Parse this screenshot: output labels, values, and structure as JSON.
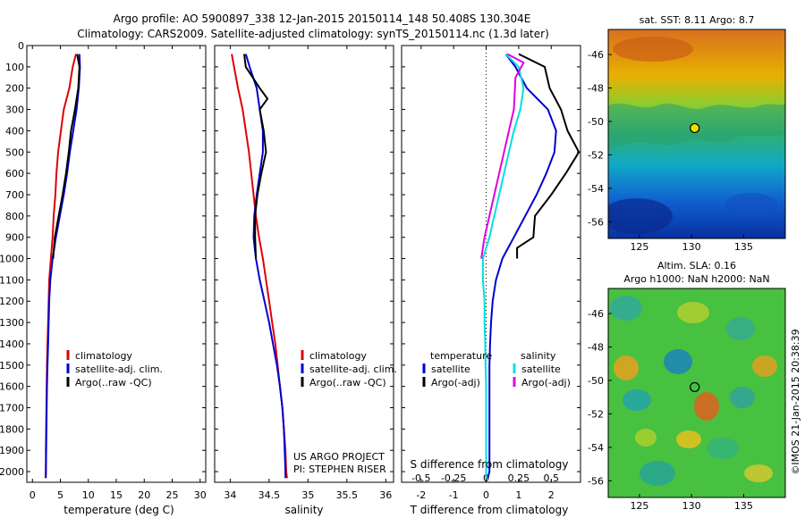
{
  "header": {
    "line1": "Argo profile: AO 5900897_338 12-Jan-2015 20150114_148 50.408S 130.304E",
    "line2": "Climatology: CARS2009. Satellite-adjusted climatology: synTS_20150114.nc (1.3d later)"
  },
  "colors": {
    "climatology": "#e00000",
    "satellite": "#0000d0",
    "argo": "#000000",
    "s_satellite": "#00e0e0",
    "s_argo": "#e000e0"
  },
  "chart_data": [
    {
      "type": "line",
      "xlabel": "temperature (deg C)",
      "xlim": [
        -1,
        31
      ],
      "xticks": [
        0,
        5,
        10,
        15,
        20,
        25,
        30
      ],
      "ylim": [
        0,
        2050
      ],
      "yticks": [
        0,
        100,
        200,
        300,
        400,
        500,
        600,
        700,
        800,
        900,
        1000,
        1100,
        1200,
        1300,
        1400,
        1500,
        1600,
        1700,
        1800,
        1900,
        2000
      ],
      "y_reversed": true,
      "legend": [
        "climatology",
        "satellite-adj. clim.",
        "Argo(..raw -QC)"
      ],
      "series": [
        {
          "name": "climatology",
          "color": "#e00000",
          "x": [
            7.8,
            7.2,
            6.6,
            5.6,
            5.1,
            4.6,
            4.3,
            4.1,
            3.8,
            3.6,
            3.3,
            3.0,
            2.9,
            2.8,
            2.7,
            2.6,
            2.55,
            2.5,
            2.45,
            2.4,
            2.4,
            2.4
          ],
          "y": [
            40,
            100,
            200,
            300,
            400,
            500,
            600,
            700,
            800,
            900,
            1000,
            1100,
            1200,
            1300,
            1400,
            1500,
            1600,
            1700,
            1800,
            1900,
            2000,
            2030
          ]
        },
        {
          "name": "satellite-adj. clim.",
          "color": "#0000d0",
          "x": [
            8.4,
            8.5,
            8.3,
            7.9,
            7.3,
            6.7,
            6.2,
            5.6,
            4.9,
            4.2,
            3.6,
            3.2,
            3.0,
            2.9,
            2.8,
            2.7,
            2.6,
            2.55,
            2.5,
            2.45,
            2.4,
            2.35
          ],
          "y": [
            40,
            100,
            200,
            300,
            400,
            500,
            600,
            700,
            800,
            900,
            1000,
            1100,
            1200,
            1300,
            1400,
            1500,
            1600,
            1700,
            1800,
            1900,
            2000,
            2030
          ]
        },
        {
          "name": "Argo(..raw -QC)",
          "color": "#000000",
          "x": [
            8.0,
            8.4,
            8.2,
            7.6,
            6.9,
            6.5,
            6.0,
            5.4,
            4.7,
            4.0,
            3.7
          ],
          "y": [
            40,
            100,
            200,
            300,
            400,
            500,
            600,
            700,
            800,
            900,
            1000
          ]
        }
      ]
    },
    {
      "type": "line",
      "xlabel": "salinity",
      "xlim": [
        33.8,
        36.1
      ],
      "xticks": [
        34,
        34.5,
        35,
        35.5,
        36
      ],
      "xticklabels": [
        "34",
        "34.5",
        "35",
        "35.5",
        "36"
      ],
      "ylim": [
        0,
        2050
      ],
      "y_reversed": true,
      "legend": [
        "climatology",
        "satellite-adj. clim.",
        "Argo(..raw -QC)"
      ],
      "annotation": [
        "US ARGO PROJECT",
        "PI: STEPHEN RISER"
      ],
      "series": [
        {
          "name": "climatology",
          "color": "#e00000",
          "x": [
            34.02,
            34.05,
            34.1,
            34.16,
            34.2,
            34.24,
            34.27,
            34.3,
            34.33,
            34.37,
            34.42,
            34.46,
            34.5,
            34.54,
            34.58,
            34.61,
            34.64,
            34.67,
            34.69,
            34.71,
            34.72,
            34.73
          ],
          "y": [
            40,
            100,
            200,
            300,
            400,
            500,
            600,
            700,
            800,
            900,
            1000,
            1100,
            1200,
            1300,
            1400,
            1500,
            1600,
            1700,
            1800,
            1900,
            2000,
            2030
          ]
        },
        {
          "name": "satellite-adj. clim.",
          "color": "#0000d0",
          "x": [
            34.2,
            34.25,
            34.34,
            34.38,
            34.42,
            34.42,
            34.38,
            34.34,
            34.31,
            34.3,
            34.33,
            34.38,
            34.44,
            34.5,
            34.55,
            34.6,
            34.64,
            34.67,
            34.69,
            34.7,
            34.71,
            34.71
          ],
          "y": [
            40,
            100,
            200,
            300,
            400,
            500,
            600,
            700,
            800,
            900,
            1000,
            1100,
            1200,
            1300,
            1400,
            1500,
            1600,
            1700,
            1800,
            1900,
            2000,
            2030
          ]
        },
        {
          "name": "Argo(..raw -QC)",
          "color": "#000000",
          "x": [
            34.18,
            34.2,
            34.38,
            34.48,
            34.38,
            34.43,
            34.46,
            34.4,
            34.35,
            34.32,
            34.32,
            34.33
          ],
          "y": [
            40,
            100,
            200,
            250,
            300,
            400,
            500,
            600,
            700,
            800,
            900,
            1000
          ]
        }
      ]
    },
    {
      "type": "line",
      "xlabel": "T difference from climatology",
      "xlabel2": "S difference from climatology",
      "xlim": [
        -2.6,
        2.9
      ],
      "xticks": [
        -2,
        -1,
        0,
        1,
        2
      ],
      "xticks2": [
        -0.5,
        -0.25,
        0,
        0.25,
        0.5
      ],
      "xticklabels2": [
        "-0.5",
        "-0.25",
        "0",
        "0.25",
        "0.5"
      ],
      "ylim": [
        0,
        2050
      ],
      "y_reversed": true,
      "legend_left": {
        "title": "temperature",
        "items": [
          "satellite",
          "Argo(-adj)"
        ]
      },
      "legend_right": {
        "title": "salinity",
        "items": [
          "satellite",
          "Argo(-adj)"
        ]
      },
      "series": [
        {
          "name": "T satellite",
          "color": "#0000d0",
          "x": [
            0.6,
            0.9,
            1.25,
            1.9,
            2.15,
            2.1,
            1.85,
            1.55,
            1.2,
            0.85,
            0.5,
            0.3,
            0.2,
            0.15,
            0.12,
            0.1,
            0.1,
            0.1,
            0.1,
            0.1,
            0.1,
            0.05
          ],
          "y": [
            40,
            100,
            200,
            300,
            400,
            500,
            600,
            700,
            800,
            900,
            1000,
            1100,
            1200,
            1300,
            1400,
            1500,
            1600,
            1700,
            1800,
            1900,
            2000,
            2030
          ]
        },
        {
          "name": "T Argo(-adj)",
          "color": "#000000",
          "x": [
            1.0,
            1.8,
            1.95,
            2.3,
            2.5,
            2.85,
            2.45,
            2.0,
            1.5,
            1.45,
            0.95,
            0.95
          ],
          "y": [
            40,
            100,
            200,
            300,
            400,
            500,
            600,
            700,
            800,
            900,
            950,
            1000
          ]
        },
        {
          "name": "S satellite",
          "color": "#00e0e0",
          "x": [
            0.6,
            1.0,
            1.15,
            1.05,
            0.85,
            0.7,
            0.55,
            0.4,
            0.25,
            0.1,
            -0.1,
            -0.1,
            -0.05,
            -0.05,
            -0.03,
            -0.02,
            0,
            0,
            0,
            0,
            0,
            0
          ],
          "y": [
            40,
            100,
            200,
            300,
            400,
            500,
            600,
            700,
            800,
            900,
            1000,
            1100,
            1200,
            1300,
            1400,
            1500,
            1600,
            1700,
            1800,
            1900,
            2000,
            2030
          ]
        },
        {
          "name": "S Argo(-adj)",
          "color": "#e000e0",
          "x": [
            0.65,
            1.15,
            0.9,
            0.85,
            0.7,
            0.55,
            0.4,
            0.25,
            0.1,
            -0.05,
            -0.15
          ],
          "y": [
            40,
            80,
            150,
            300,
            400,
            500,
            600,
            700,
            800,
            900,
            1000
          ]
        }
      ]
    },
    {
      "type": "heatmap",
      "title": "sat. SST: 8.11  Argo: 8.7",
      "xlim": [
        122,
        139
      ],
      "xticks": [
        125,
        130,
        135
      ],
      "ylim": [
        -57,
        -44.5
      ],
      "yticks": [
        -46,
        -48,
        -50,
        -52,
        -54,
        -56
      ],
      "marker": {
        "lon": 130.3,
        "lat": -50.4
      },
      "colormap": "jet",
      "gradient": "warm (north) to cool (south)"
    },
    {
      "type": "heatmap",
      "title": "Altim. SLA: 0.16",
      "subtitle": "Argo h1000: NaN h2000: NaN",
      "xlim": [
        122,
        139
      ],
      "xticks": [
        125,
        130,
        135
      ],
      "ylim": [
        -57,
        -44.5
      ],
      "yticks": [
        -46,
        -48,
        -50,
        -52,
        -54,
        -56
      ],
      "marker": {
        "lon": 130.3,
        "lat": -50.4
      },
      "colormap": "jet"
    }
  ],
  "credit": "©IMOS 21-Jan-2015 20:38:39"
}
